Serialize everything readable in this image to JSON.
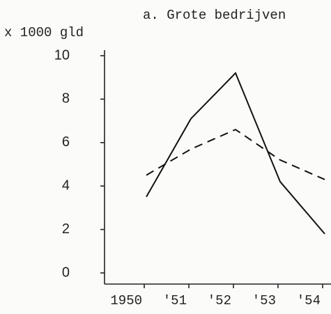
{
  "chart_data": {
    "type": "line",
    "title": "a. Grote bedrijven",
    "y_label": "x 1000 gld",
    "categories": [
      "1950",
      "'51",
      "'52",
      "'53",
      "'54"
    ],
    "series": [
      {
        "color": "#111111",
        "style": "solid",
        "values": [
          3.5,
          7.1,
          9.2,
          4.2,
          1.8
        ]
      },
      {
        "color": "#111111",
        "style": "dashed",
        "values": [
          4.5,
          5.7,
          6.6,
          5.2,
          4.3
        ]
      }
    ],
    "ylim": [
      0,
      10
    ],
    "yticks": [
      0,
      2,
      4,
      6,
      8,
      10
    ],
    "grid": false
  }
}
